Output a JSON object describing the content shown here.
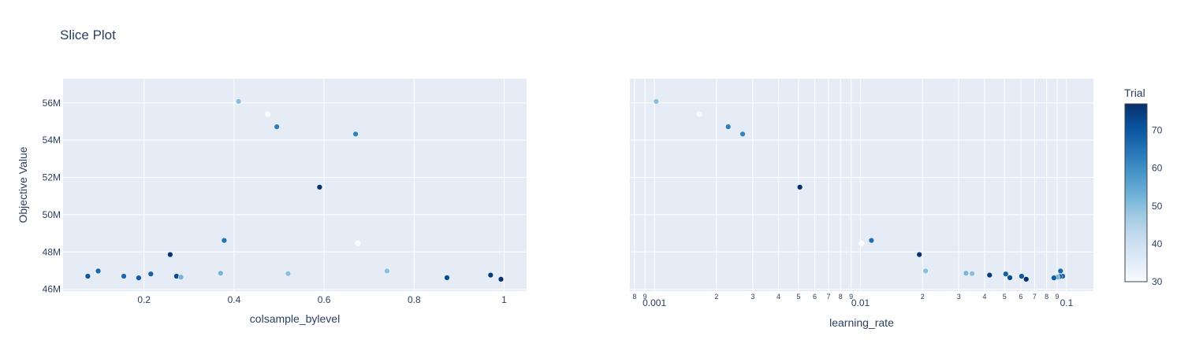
{
  "chart_data": {
    "type": "scatter",
    "title": "Slice Plot",
    "ylabel": "Objective Value",
    "ylim": [
      45900000,
      57300000
    ],
    "yticks": [
      46000000,
      48000000,
      50000000,
      52000000,
      54000000,
      56000000
    ],
    "ytick_labels": [
      "46M",
      "48M",
      "50M",
      "52M",
      "54M",
      "56M"
    ],
    "grid": true,
    "colorbar": {
      "title": "Trial",
      "range": [
        30,
        77
      ],
      "ticks": [
        30,
        40,
        50,
        60,
        70
      ],
      "colors": [
        "#f7fbff",
        "#deebf7",
        "#c6dbef",
        "#9ecae1",
        "#6baed6",
        "#4292c6",
        "#2171b5",
        "#08519c",
        "#08306b"
      ]
    },
    "subplots": [
      {
        "xlabel": "colsample_bylevel",
        "xscale": "linear",
        "xlim": [
          0.02,
          1.05
        ],
        "xticks": [
          0.2,
          0.4,
          0.6,
          0.8,
          1
        ],
        "xtick_labels": [
          "0.2",
          "0.4",
          "0.6",
          "0.8",
          "1"
        ],
        "points": [
          {
            "x": 0.41,
            "y": 56080000,
            "trial": 50
          },
          {
            "x": 0.475,
            "y": 55400000,
            "trial": 30
          },
          {
            "x": 0.495,
            "y": 54720000,
            "trial": 63
          },
          {
            "x": 0.67,
            "y": 54330000,
            "trial": 62
          },
          {
            "x": 0.59,
            "y": 51480000,
            "trial": 77
          },
          {
            "x": 0.378,
            "y": 48620000,
            "trial": 65
          },
          {
            "x": 0.675,
            "y": 48460000,
            "trial": 30
          },
          {
            "x": 0.258,
            "y": 47860000,
            "trial": 76
          },
          {
            "x": 0.74,
            "y": 46980000,
            "trial": 50
          },
          {
            "x": 0.098,
            "y": 46980000,
            "trial": 67
          },
          {
            "x": 0.37,
            "y": 46860000,
            "trial": 52
          },
          {
            "x": 0.52,
            "y": 46840000,
            "trial": 50
          },
          {
            "x": 0.215,
            "y": 46820000,
            "trial": 68
          },
          {
            "x": 0.97,
            "y": 46760000,
            "trial": 75
          },
          {
            "x": 0.075,
            "y": 46700000,
            "trial": 70
          },
          {
            "x": 0.155,
            "y": 46700000,
            "trial": 67
          },
          {
            "x": 0.272,
            "y": 46700000,
            "trial": 72
          },
          {
            "x": 0.282,
            "y": 46650000,
            "trial": 52
          },
          {
            "x": 0.873,
            "y": 46620000,
            "trial": 72
          },
          {
            "x": 0.188,
            "y": 46610000,
            "trial": 69
          },
          {
            "x": 0.993,
            "y": 46540000,
            "trial": 77
          }
        ]
      },
      {
        "xlabel": "learning_rate",
        "xscale": "log",
        "xlim": [
          0.00076,
          0.135
        ],
        "xticks": [
          0.0008,
          0.0009,
          0.001,
          0.002,
          0.003,
          0.004,
          0.005,
          0.006,
          0.007,
          0.008,
          0.009,
          0.01,
          0.02,
          0.03,
          0.04,
          0.05,
          0.06,
          0.07,
          0.08,
          0.09,
          0.1
        ],
        "xtick_labels": [
          "8",
          "9",
          "0.001",
          "2",
          "3",
          "4",
          "5",
          "6",
          "7",
          "8",
          "9",
          "0.01",
          "2",
          "3",
          "4",
          "5",
          "6",
          "7",
          "8",
          "9",
          "0.1"
        ],
        "points": [
          {
            "x": 0.00102,
            "y": 56080000,
            "trial": 50
          },
          {
            "x": 0.00165,
            "y": 55400000,
            "trial": 30
          },
          {
            "x": 0.00228,
            "y": 54720000,
            "trial": 63
          },
          {
            "x": 0.00268,
            "y": 54330000,
            "trial": 62
          },
          {
            "x": 0.00508,
            "y": 51480000,
            "trial": 77
          },
          {
            "x": 0.0113,
            "y": 48620000,
            "trial": 65
          },
          {
            "x": 0.0101,
            "y": 48460000,
            "trial": 30
          },
          {
            "x": 0.0193,
            "y": 47860000,
            "trial": 76
          },
          {
            "x": 0.0207,
            "y": 46980000,
            "trial": 50
          },
          {
            "x": 0.0935,
            "y": 46980000,
            "trial": 67
          },
          {
            "x": 0.0325,
            "y": 46860000,
            "trial": 52
          },
          {
            "x": 0.0348,
            "y": 46840000,
            "trial": 50
          },
          {
            "x": 0.0507,
            "y": 46820000,
            "trial": 68
          },
          {
            "x": 0.0423,
            "y": 46760000,
            "trial": 75
          },
          {
            "x": 0.0605,
            "y": 46700000,
            "trial": 70
          },
          {
            "x": 0.0958,
            "y": 46700000,
            "trial": 67
          },
          {
            "x": 0.0925,
            "y": 46680000,
            "trial": 72
          },
          {
            "x": 0.0905,
            "y": 46650000,
            "trial": 52
          },
          {
            "x": 0.0531,
            "y": 46620000,
            "trial": 72
          },
          {
            "x": 0.0868,
            "y": 46610000,
            "trial": 69
          },
          {
            "x": 0.0637,
            "y": 46540000,
            "trial": 77
          }
        ]
      }
    ]
  }
}
